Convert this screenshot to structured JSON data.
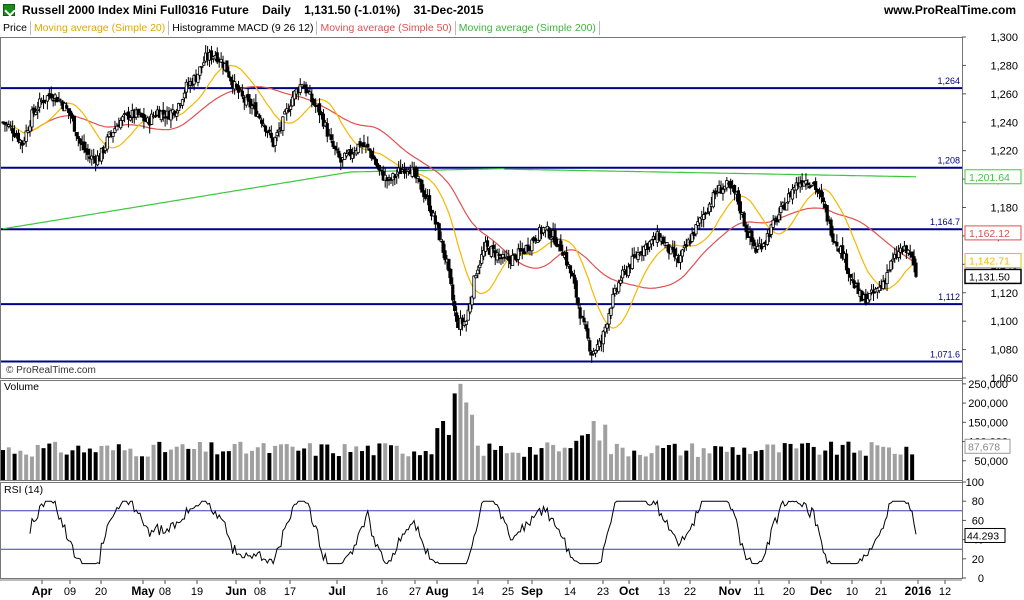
{
  "header": {
    "instrument": "Russell 2000 Index Mini Full0316 Future",
    "period": "Daily",
    "quote": "1,131.50 (-1.01%)",
    "date": "31-Dec-2015",
    "site": "www.ProRealTime.com"
  },
  "legend": {
    "price": "Price",
    "ma20": "Moving average (Simple 20)",
    "macd": "Histogramme MACD (9 26 12)",
    "ma50": "Moving average (Simple 50)",
    "ma200": "Moving average (Simple 200)"
  },
  "watermark": "© ProRealTime.com",
  "colors": {
    "candle": "#000000",
    "ma20": "#f5b800",
    "ma50": "#e05050",
    "ma200": "#3cc83c",
    "hline": "#00008b",
    "volume_up": "#a0a0a0",
    "volume_down": "#000000",
    "rsi_line": "#000000",
    "rsi_band": "#3c3cb4"
  },
  "chart_data": [
    {
      "type": "candlestick",
      "title": "Russell 2000 Index Mini Full0316 Future",
      "ylim": [
        1060,
        1300
      ],
      "y_ticks": [
        "1,300",
        "1,280",
        "1,260",
        "1,240",
        "1,220",
        "1,200",
        "1,180",
        "1,160",
        "1,140",
        "1,120",
        "1,100",
        "1,080",
        "1,060"
      ],
      "y_tick_values": [
        1300,
        1280,
        1260,
        1240,
        1220,
        1200,
        1180,
        1160,
        1140,
        1120,
        1100,
        1080,
        1060
      ],
      "x_ticks": [
        "Apr",
        "09",
        "20",
        "May",
        "08",
        "19",
        "Jun",
        "08",
        "17",
        "Jul",
        "16",
        "27",
        "Aug",
        "14",
        "25",
        "Sep",
        "14",
        "23",
        "Oct",
        "13",
        "22",
        "Nov",
        "11",
        "20",
        "Dec",
        "10",
        "21",
        "2016",
        "12"
      ],
      "horizontal_levels": [
        {
          "value": 1264,
          "label": "1,264"
        },
        {
          "value": 1208,
          "label": "1,208"
        },
        {
          "value": 1164.7,
          "label": "1,164.7"
        },
        {
          "value": 1112,
          "label": "1,112"
        },
        {
          "value": 1071.6,
          "label": "1,071.6"
        }
      ],
      "value_labels": [
        {
          "value": 1201.64,
          "label": "1,201.64",
          "series": "ma200"
        },
        {
          "value": 1162.12,
          "label": "1,162.12",
          "series": "ma50"
        },
        {
          "value": 1142.71,
          "label": "1,142.71",
          "series": "ma20"
        },
        {
          "value": 1131.5,
          "label": "1,131.50",
          "series": "price"
        }
      ],
      "close_anchors": [
        [
          0,
          1240
        ],
        [
          5,
          1235
        ],
        [
          10,
          1225
        ],
        [
          15,
          1245
        ],
        [
          20,
          1255
        ],
        [
          25,
          1260
        ],
        [
          30,
          1255
        ],
        [
          35,
          1245
        ],
        [
          40,
          1225
        ],
        [
          45,
          1215
        ],
        [
          50,
          1215
        ],
        [
          55,
          1230
        ],
        [
          60,
          1240
        ],
        [
          65,
          1245
        ],
        [
          70,
          1245
        ],
        [
          75,
          1240
        ],
        [
          80,
          1248
        ],
        [
          85,
          1245
        ],
        [
          90,
          1250
        ],
        [
          95,
          1265
        ],
        [
          100,
          1272
        ],
        [
          105,
          1285
        ],
        [
          110,
          1288
        ],
        [
          115,
          1280
        ],
        [
          120,
          1265
        ],
        [
          125,
          1255
        ],
        [
          130,
          1250
        ],
        [
          135,
          1240
        ],
        [
          140,
          1225
        ],
        [
          145,
          1240
        ],
        [
          150,
          1258
        ],
        [
          155,
          1268
        ],
        [
          160,
          1255
        ],
        [
          165,
          1245
        ],
        [
          170,
          1225
        ],
        [
          175,
          1212
        ],
        [
          180,
          1218
        ],
        [
          185,
          1225
        ],
        [
          190,
          1220
        ],
        [
          195,
          1205
        ],
        [
          200,
          1198
        ],
        [
          205,
          1205
        ],
        [
          210,
          1210
        ],
        [
          215,
          1198
        ],
        [
          220,
          1185
        ],
        [
          225,
          1165
        ],
        [
          230,
          1140
        ],
        [
          235,
          1098
        ],
        [
          240,
          1100
        ],
        [
          245,
          1135
        ],
        [
          250,
          1152
        ],
        [
          255,
          1148
        ],
        [
          260,
          1142
        ],
        [
          265,
          1145
        ],
        [
          270,
          1150
        ],
        [
          275,
          1158
        ],
        [
          280,
          1165
        ],
        [
          285,
          1160
        ],
        [
          290,
          1150
        ],
        [
          295,
          1130
        ],
        [
          300,
          1100
        ],
        [
          305,
          1078
        ],
        [
          310,
          1085
        ],
        [
          315,
          1112
        ],
        [
          320,
          1130
        ],
        [
          325,
          1140
        ],
        [
          330,
          1150
        ],
        [
          335,
          1155
        ],
        [
          340,
          1160
        ],
        [
          345,
          1150
        ],
        [
          350,
          1142
        ],
        [
          355,
          1155
        ],
        [
          360,
          1168
        ],
        [
          365,
          1180
        ],
        [
          370,
          1192
        ],
        [
          375,
          1195
        ],
        [
          380,
          1188
        ],
        [
          385,
          1165
        ],
        [
          390,
          1150
        ],
        [
          395,
          1158
        ],
        [
          400,
          1170
        ],
        [
          405,
          1182
        ],
        [
          410,
          1195
        ],
        [
          415,
          1200
        ],
        [
          420,
          1197
        ],
        [
          425,
          1182
        ],
        [
          430,
          1160
        ],
        [
          435,
          1148
        ],
        [
          440,
          1128
        ],
        [
          445,
          1115
        ],
        [
          450,
          1118
        ],
        [
          455,
          1125
        ],
        [
          460,
          1140
        ],
        [
          465,
          1150
        ],
        [
          470,
          1148
        ],
        [
          473,
          1131.5
        ]
      ]
    },
    {
      "type": "bar",
      "title": "Volume",
      "ylim": [
        0,
        260000
      ],
      "y_ticks": [
        "250,000",
        "200,000",
        "150,000",
        "100,000",
        "50,000"
      ],
      "y_tick_values": [
        250000,
        200000,
        150000,
        100000,
        50000
      ],
      "last_value": {
        "value": 87678,
        "label": "87,678"
      }
    },
    {
      "type": "line",
      "title": "RSI (14)",
      "ylim": [
        0,
        100
      ],
      "y_ticks": [
        "100",
        "80",
        "60",
        "40",
        "20",
        "0"
      ],
      "y_tick_values": [
        100,
        80,
        60,
        40,
        20,
        0
      ],
      "bands": [
        70,
        30
      ],
      "last_value": {
        "value": 44.293,
        "label": "44.293"
      }
    }
  ]
}
